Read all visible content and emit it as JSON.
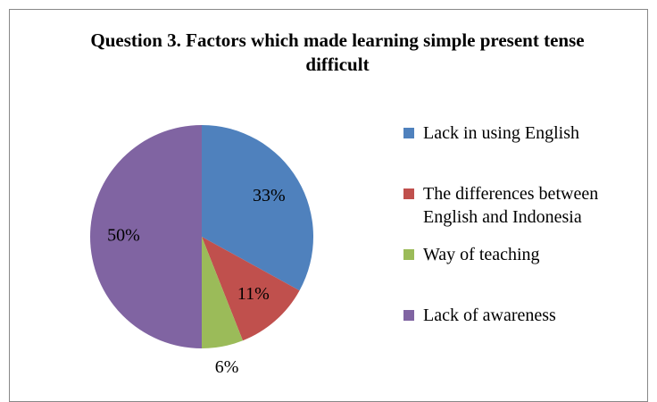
{
  "chart_data": {
    "type": "pie",
    "title": "Question 3. Factors which made learning simple present tense difficult",
    "categories": [
      "Lack in using English",
      "The differences between English and Indonesia",
      "Way of teaching",
      "Lack of awareness"
    ],
    "values": [
      33,
      11,
      6,
      50
    ],
    "value_labels": [
      "33%",
      "11%",
      "6%",
      "50%"
    ],
    "colors": [
      "#4f81bd",
      "#c0504d",
      "#9bbb59",
      "#8064a2"
    ],
    "legend": "right"
  }
}
